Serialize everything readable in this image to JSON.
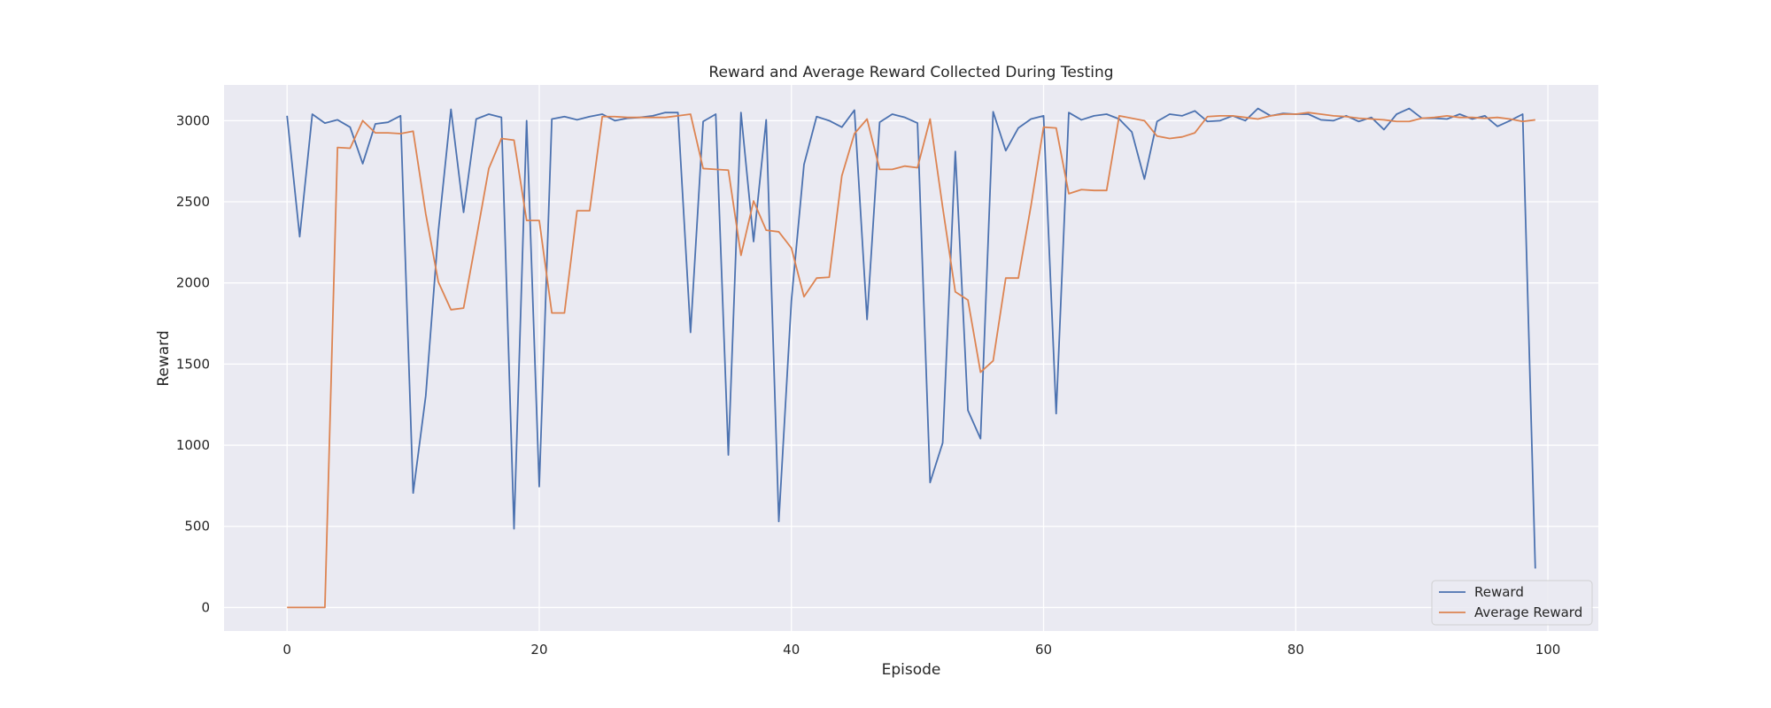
{
  "chart_data": {
    "type": "line",
    "title": "Reward and Average Reward Collected During Testing",
    "xlabel": "Episode",
    "ylabel": "Reward",
    "xlim": [
      -5,
      104
    ],
    "ylim": [
      -145,
      3220
    ],
    "xticks": [
      0,
      20,
      40,
      60,
      80,
      100
    ],
    "yticks": [
      0,
      500,
      1000,
      1500,
      2000,
      2500,
      3000
    ],
    "grid": true,
    "legend_position": "lower-right",
    "x": [
      0,
      1,
      2,
      3,
      4,
      5,
      6,
      7,
      8,
      9,
      10,
      11,
      12,
      13,
      14,
      15,
      16,
      17,
      18,
      19,
      20,
      21,
      22,
      23,
      24,
      25,
      26,
      27,
      28,
      29,
      30,
      31,
      32,
      33,
      34,
      35,
      36,
      37,
      38,
      39,
      40,
      41,
      42,
      43,
      44,
      45,
      46,
      47,
      48,
      49,
      50,
      51,
      52,
      53,
      54,
      55,
      56,
      57,
      58,
      59,
      60,
      61,
      62,
      63,
      64,
      65,
      66,
      67,
      68,
      69,
      70,
      71,
      72,
      73,
      74,
      75,
      76,
      77,
      78,
      79,
      80,
      81,
      82,
      83,
      84,
      85,
      86,
      87,
      88,
      89,
      90,
      91,
      92,
      93,
      94,
      95,
      96,
      97,
      98,
      99
    ],
    "series": [
      {
        "name": "Reward",
        "color": "#4c72b0",
        "values": [
          3030,
          2285,
          3040,
          2985,
          3005,
          2960,
          2735,
          2980,
          2990,
          3030,
          705,
          1305,
          2320,
          3070,
          2435,
          3010,
          3040,
          3020,
          485,
          3000,
          745,
          3010,
          3025,
          3005,
          3025,
          3040,
          3000,
          3015,
          3020,
          3030,
          3050,
          3050,
          1695,
          2995,
          3040,
          940,
          3050,
          2255,
          3005,
          530,
          1890,
          2730,
          3025,
          3000,
          2960,
          3065,
          1775,
          2990,
          3040,
          3020,
          2985,
          770,
          1015,
          2810,
          1215,
          1040,
          3055,
          2815,
          2955,
          3010,
          3030,
          1195,
          3050,
          3005,
          3030,
          3040,
          3010,
          2930,
          2640,
          2995,
          3040,
          3030,
          3060,
          2995,
          3000,
          3030,
          3000,
          3075,
          3030,
          3045,
          3040,
          3040,
          3005,
          3000,
          3030,
          2995,
          3020,
          2945,
          3040,
          3075,
          3015,
          3015,
          3010,
          3040,
          3010,
          3030,
          2965,
          3000,
          3040,
          240
        ]
      },
      {
        "name": "Average Reward",
        "color": "#dd8452",
        "values": [
          0,
          0,
          0,
          0,
          2835,
          2830,
          3000,
          2925,
          2925,
          2920,
          2935,
          2425,
          2005,
          1835,
          1845,
          2270,
          2705,
          2890,
          2880,
          2385,
          2385,
          1815,
          1815,
          2445,
          2445,
          3025,
          3025,
          3020,
          3020,
          3020,
          3020,
          3030,
          3040,
          2705,
          2700,
          2695,
          2170,
          2505,
          2325,
          2315,
          2215,
          1915,
          2030,
          2035,
          2660,
          2920,
          3010,
          2700,
          2700,
          2720,
          2710,
          3010,
          2465,
          1945,
          1895,
          1450,
          1520,
          2030,
          2030,
          2475,
          2960,
          2955,
          2550,
          2575,
          2570,
          2570,
          3030,
          3015,
          3000,
          2905,
          2890,
          2900,
          2925,
          3025,
          3030,
          3030,
          3020,
          3010,
          3030,
          3040,
          3040,
          3050,
          3040,
          3030,
          3025,
          3015,
          3010,
          3005,
          2995,
          2995,
          3015,
          3020,
          3030,
          3020,
          3020,
          3015,
          3020,
          3010,
          2995,
          3005
        ]
      }
    ]
  }
}
